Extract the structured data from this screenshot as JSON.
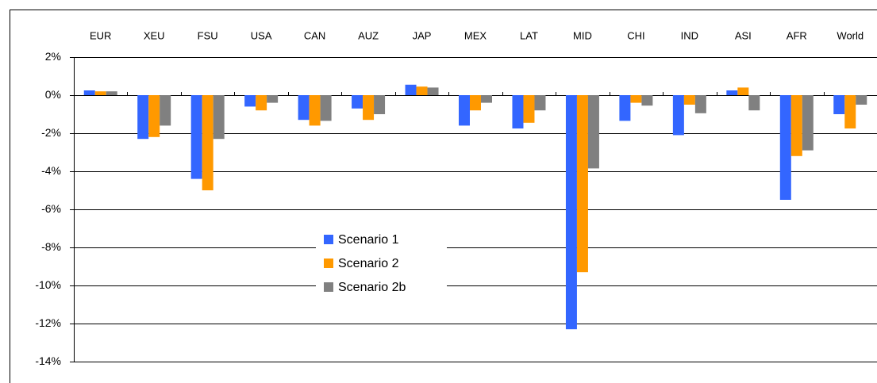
{
  "chart_data": {
    "type": "bar",
    "categories": [
      "EUR",
      "XEU",
      "FSU",
      "USA",
      "CAN",
      "AUZ",
      "JAP",
      "MEX",
      "LAT",
      "MID",
      "CHI",
      "IND",
      "ASI",
      "AFR",
      "World"
    ],
    "series": [
      {
        "name": "Scenario 1",
        "color": "#3366ff",
        "values": [
          0.25,
          -2.3,
          -4.4,
          -0.6,
          -1.3,
          -0.7,
          0.55,
          -1.6,
          -1.75,
          -12.3,
          -1.35,
          -2.1,
          0.25,
          -5.5,
          -1.0
        ]
      },
      {
        "name": "Scenario 2",
        "color": "#ff9900",
        "values": [
          0.2,
          -2.2,
          -5.0,
          -0.8,
          -1.6,
          -1.3,
          0.45,
          -0.8,
          -1.45,
          -9.3,
          -0.4,
          -0.5,
          0.4,
          -3.2,
          -1.75
        ]
      },
      {
        "name": "Scenario 2b",
        "color": "#808080",
        "values": [
          0.2,
          -1.6,
          -2.3,
          -0.4,
          -1.35,
          -1.0,
          0.4,
          -0.4,
          -0.8,
          -3.85,
          -0.55,
          -0.95,
          -0.8,
          -2.9,
          -0.5
        ]
      }
    ],
    "ylim": [
      -14,
      2
    ],
    "yticks": [
      {
        "value": 2,
        "label": "2%"
      },
      {
        "value": 0,
        "label": "0%"
      },
      {
        "value": -2,
        "label": "-2%"
      },
      {
        "value": -4,
        "label": "-4%"
      },
      {
        "value": -6,
        "label": "-6%"
      },
      {
        "value": -8,
        "label": "-8%"
      },
      {
        "value": -10,
        "label": "-10%"
      },
      {
        "value": -12,
        "label": "-12%"
      },
      {
        "value": -14,
        "label": "-14%"
      }
    ],
    "grid": true
  }
}
